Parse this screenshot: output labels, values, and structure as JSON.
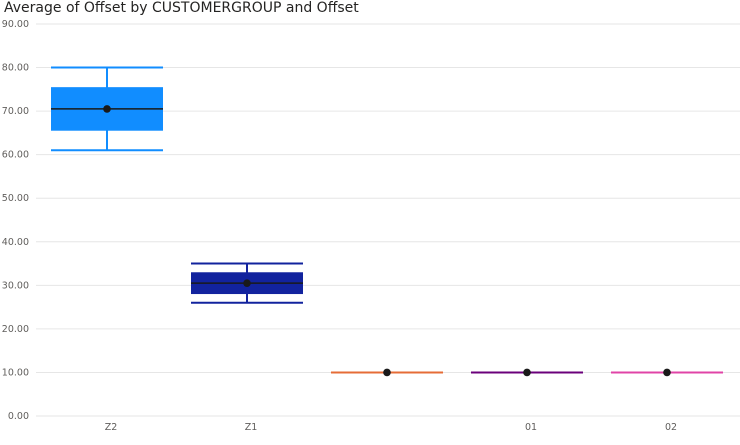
{
  "chart_data": {
    "type": "boxplot",
    "title": "Average of Offset by CUSTOMERGROUP and Offset",
    "xlabel": "",
    "ylabel": "",
    "ylim": [
      0,
      90
    ],
    "yticks": [
      "0.00",
      "10.00",
      "20.00",
      "30.00",
      "40.00",
      "50.00",
      "60.00",
      "70.00",
      "80.00",
      "90.00"
    ],
    "yticks_values": [
      0,
      10,
      20,
      30,
      40,
      50,
      60,
      70,
      80,
      90
    ],
    "grid": true,
    "legend": "none",
    "categories": [
      "Z2",
      "Z1",
      "",
      "01",
      "02"
    ],
    "boxes": [
      {
        "category": "Z2",
        "min": 61,
        "q1": 65.5,
        "median": 70.5,
        "q3": 75.5,
        "max": 80,
        "mean": 70.5,
        "color": "#118dff"
      },
      {
        "category": "Z1",
        "min": 26,
        "q1": 28,
        "median": 30.5,
        "q3": 33,
        "max": 35,
        "mean": 30.5,
        "color": "#12239e"
      },
      {
        "category": "",
        "min": 10,
        "q1": 10,
        "median": 10,
        "q3": 10,
        "max": 10,
        "mean": 10,
        "color": "#e66c37"
      },
      {
        "category": "01",
        "min": 10,
        "q1": 10,
        "median": 10,
        "q3": 10,
        "max": 10,
        "mean": 10,
        "color": "#6b007b"
      },
      {
        "category": "02",
        "min": 10,
        "q1": 10,
        "median": 10,
        "q3": 10,
        "max": 10,
        "mean": 10,
        "color": "#e044a7"
      }
    ]
  }
}
